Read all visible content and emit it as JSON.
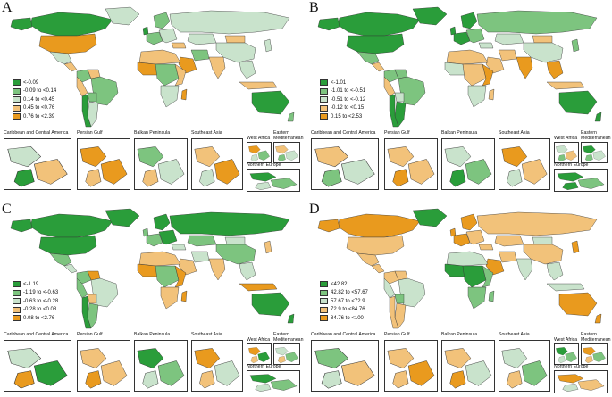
{
  "colors": {
    "c1": "#2a9d3a",
    "c2": "#7dc47f",
    "c3": "#c9e3cc",
    "c4": "#f2c27a",
    "c5": "#e99a1e"
  },
  "inset_titles": {
    "caribbean": "Caribbean and Central America",
    "persian_gulf": "Persian Gulf",
    "balkan": "Balkan Peninsula",
    "southeast_asia": "Southeast Asia",
    "west_africa": "West Africa",
    "eastern_med": "Eastern Mediterranean",
    "northern_europe": "Northern Europe"
  },
  "panels": [
    {
      "letter": "A",
      "legend": [
        "<-0.09",
        "-0.09 to <0.14",
        "0.14 to <0.45",
        "0.45 to <0.76",
        "0.76 to <2.39"
      ]
    },
    {
      "letter": "B",
      "legend": [
        "<-1.01",
        "-1.01 to <-0.51",
        "-0.51 to <-0.12",
        "-0.12 to <0.15",
        "0.15 to <2.53"
      ]
    },
    {
      "letter": "C",
      "legend": [
        "<-1.19",
        "-1.19 to <-0.63",
        "-0.63 to <-0.28",
        "-0.28 to <0.08",
        "0.08 to <2.76"
      ]
    },
    {
      "letter": "D",
      "legend": [
        "<42.82",
        "42.82 to <57.67",
        "57.67 to <72.9",
        "72.9 to <84.76",
        "84.76 to <100"
      ]
    }
  ]
}
